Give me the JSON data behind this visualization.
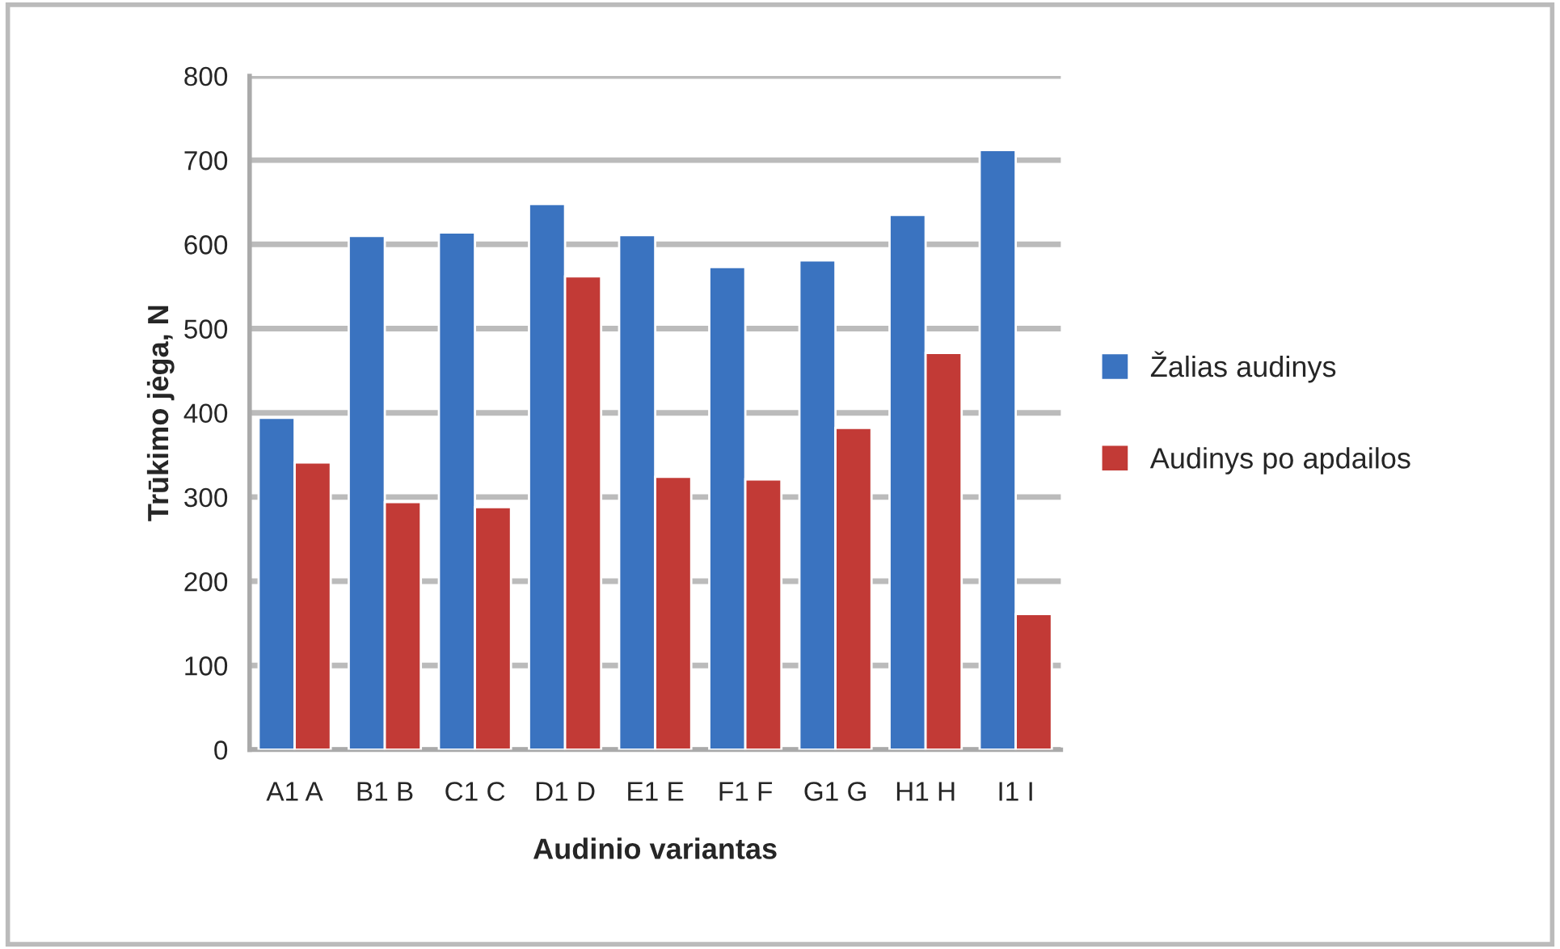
{
  "chart_data": {
    "type": "bar",
    "categories": [
      "A1 A",
      "B1 B",
      "C1 C",
      "D1 D",
      "E1 E",
      "F1 F",
      "G1 G",
      "H1 H",
      "I1 I"
    ],
    "series": [
      {
        "name": "Žalias audinys",
        "color": "#3a73c0",
        "values": [
          394,
          610,
          614,
          648,
          611,
          573,
          581,
          635,
          712
        ]
      },
      {
        "name": "Audinys po apdailos",
        "color": "#c23a36",
        "values": [
          341,
          294,
          288,
          562,
          324,
          321,
          382,
          471,
          161
        ]
      }
    ],
    "xlabel": "Audinio variantas",
    "ylabel": "Trūkimo jėga, N",
    "ylim": [
      0,
      800
    ],
    "yticks": [
      0,
      100,
      200,
      300,
      400,
      500,
      600,
      700,
      800
    ],
    "grid": "y",
    "legend": "right"
  }
}
